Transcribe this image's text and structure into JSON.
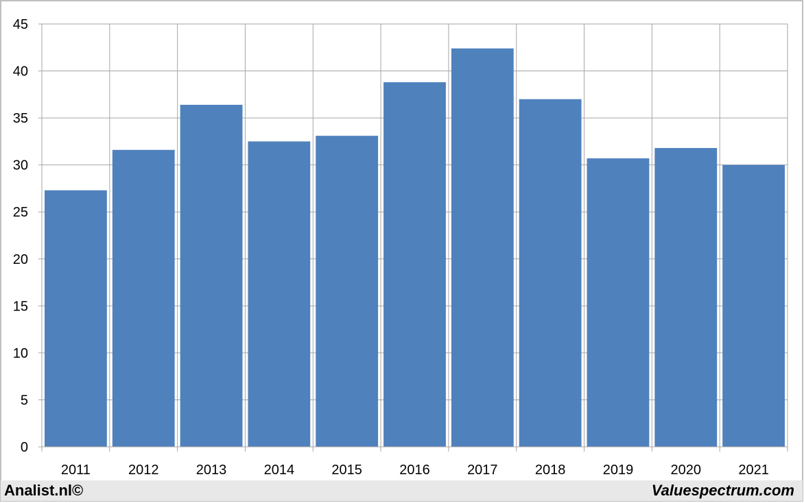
{
  "chart_data": {
    "type": "bar",
    "categories": [
      "2011",
      "2012",
      "2013",
      "2014",
      "2015",
      "2016",
      "2017",
      "2018",
      "2019",
      "2020",
      "2021"
    ],
    "values": [
      27.3,
      31.6,
      36.4,
      32.5,
      33.1,
      38.8,
      42.4,
      37.0,
      30.7,
      31.8,
      30.0
    ],
    "ylim": [
      0,
      45
    ],
    "yticks": [
      "0",
      "5",
      "10",
      "15",
      "20",
      "25",
      "30",
      "35",
      "40",
      "45"
    ],
    "title": "",
    "xlabel": "",
    "ylabel": "",
    "grid": true,
    "legend": "none",
    "bar_color": "#4f81bd"
  },
  "footer": {
    "left_text": "Analist.nl©",
    "right_text": "Valuespectrum.com"
  },
  "colors": {
    "frame": "#bfbfbf",
    "grid": "#a6a6a6",
    "footer_band": "#e8e8e8"
  }
}
